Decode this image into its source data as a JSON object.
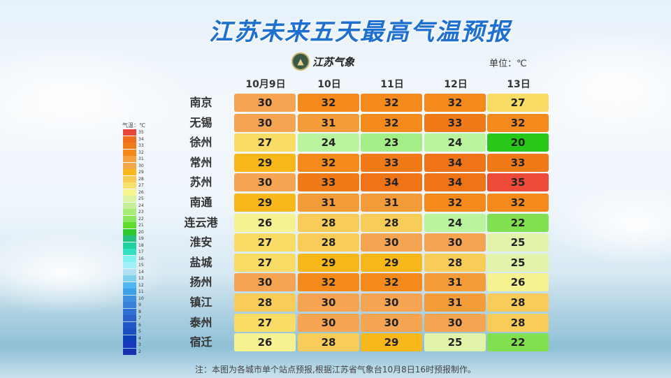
{
  "title": "江苏未来五天最高气温预报",
  "logo_text": "江苏气象",
  "unit_label": "单位：℃",
  "legend_title": "气温：℃",
  "footnote": "注：本图为各城市单个站点预报,根据江苏省气象台10月8日16时预报制作。",
  "chart_data": {
    "type": "heatmap",
    "title": "江苏未来五天最高气温预报",
    "columns": [
      "10月9日",
      "10日",
      "11日",
      "12日",
      "13日"
    ],
    "rows": [
      "南京",
      "无锡",
      "徐州",
      "常州",
      "苏州",
      "南通",
      "连云港",
      "淮安",
      "盐城",
      "扬州",
      "镇江",
      "泰州",
      "宿迁"
    ],
    "values": [
      [
        30,
        32,
        32,
        32,
        27
      ],
      [
        30,
        31,
        32,
        33,
        32
      ],
      [
        27,
        24,
        23,
        24,
        20
      ],
      [
        29,
        32,
        33,
        34,
        33
      ],
      [
        30,
        33,
        34,
        34,
        35
      ],
      [
        29,
        31,
        31,
        32,
        32
      ],
      [
        26,
        28,
        28,
        24,
        22
      ],
      [
        27,
        28,
        30,
        30,
        25
      ],
      [
        27,
        29,
        29,
        28,
        25
      ],
      [
        30,
        32,
        32,
        31,
        26
      ],
      [
        28,
        30,
        30,
        31,
        28
      ],
      [
        27,
        30,
        30,
        30,
        28
      ],
      [
        26,
        28,
        29,
        25,
        22
      ]
    ],
    "unit": "℃",
    "legend_values": [
      35,
      34,
      33,
      32,
      31,
      30,
      29,
      28,
      27,
      26,
      25,
      24,
      23,
      22,
      21,
      20,
      19,
      18,
      17,
      16,
      15,
      14,
      13,
      12,
      11,
      10,
      9,
      8,
      7,
      6,
      5,
      4,
      3,
      2
    ],
    "legend_colors": [
      "#e8463a",
      "#ee6e1e",
      "#f07a18",
      "#f4881c",
      "#f5a040",
      "#f4a84c",
      "#f6b81a",
      "#f7cc55",
      "#f8e070",
      "#f8f590",
      "#def3a2",
      "#c4f09a",
      "#a8ec78",
      "#8ae65a",
      "#5edc2c",
      "#2cc82c",
      "#24c080",
      "#20d0a0",
      "#30e0c0",
      "#80f0f0",
      "#a0f0f8",
      "#b0e0f0",
      "#80d0f0",
      "#50b8f0",
      "#3aa0e8",
      "#4090e0",
      "#3a80d8",
      "#3070d0",
      "#2a60c8",
      "#2058c8",
      "#1a50c0",
      "#1040b8",
      "#1838c0",
      "#1830b0"
    ],
    "cell_colors": {
      "35": "#ee4a38",
      "34": "#ef7418",
      "33": "#f17a18",
      "32": "#f58a1c",
      "31": "#f59c3a",
      "30": "#f5a452",
      "29": "#f8b81c",
      "28": "#f8cc58",
      "27": "#f9dc66",
      "26": "#f6f292",
      "25": "#e2f4aa",
      "24": "#baf49e",
      "23": "#a4ee88",
      "22": "#80e050",
      "20": "#28c818"
    }
  }
}
